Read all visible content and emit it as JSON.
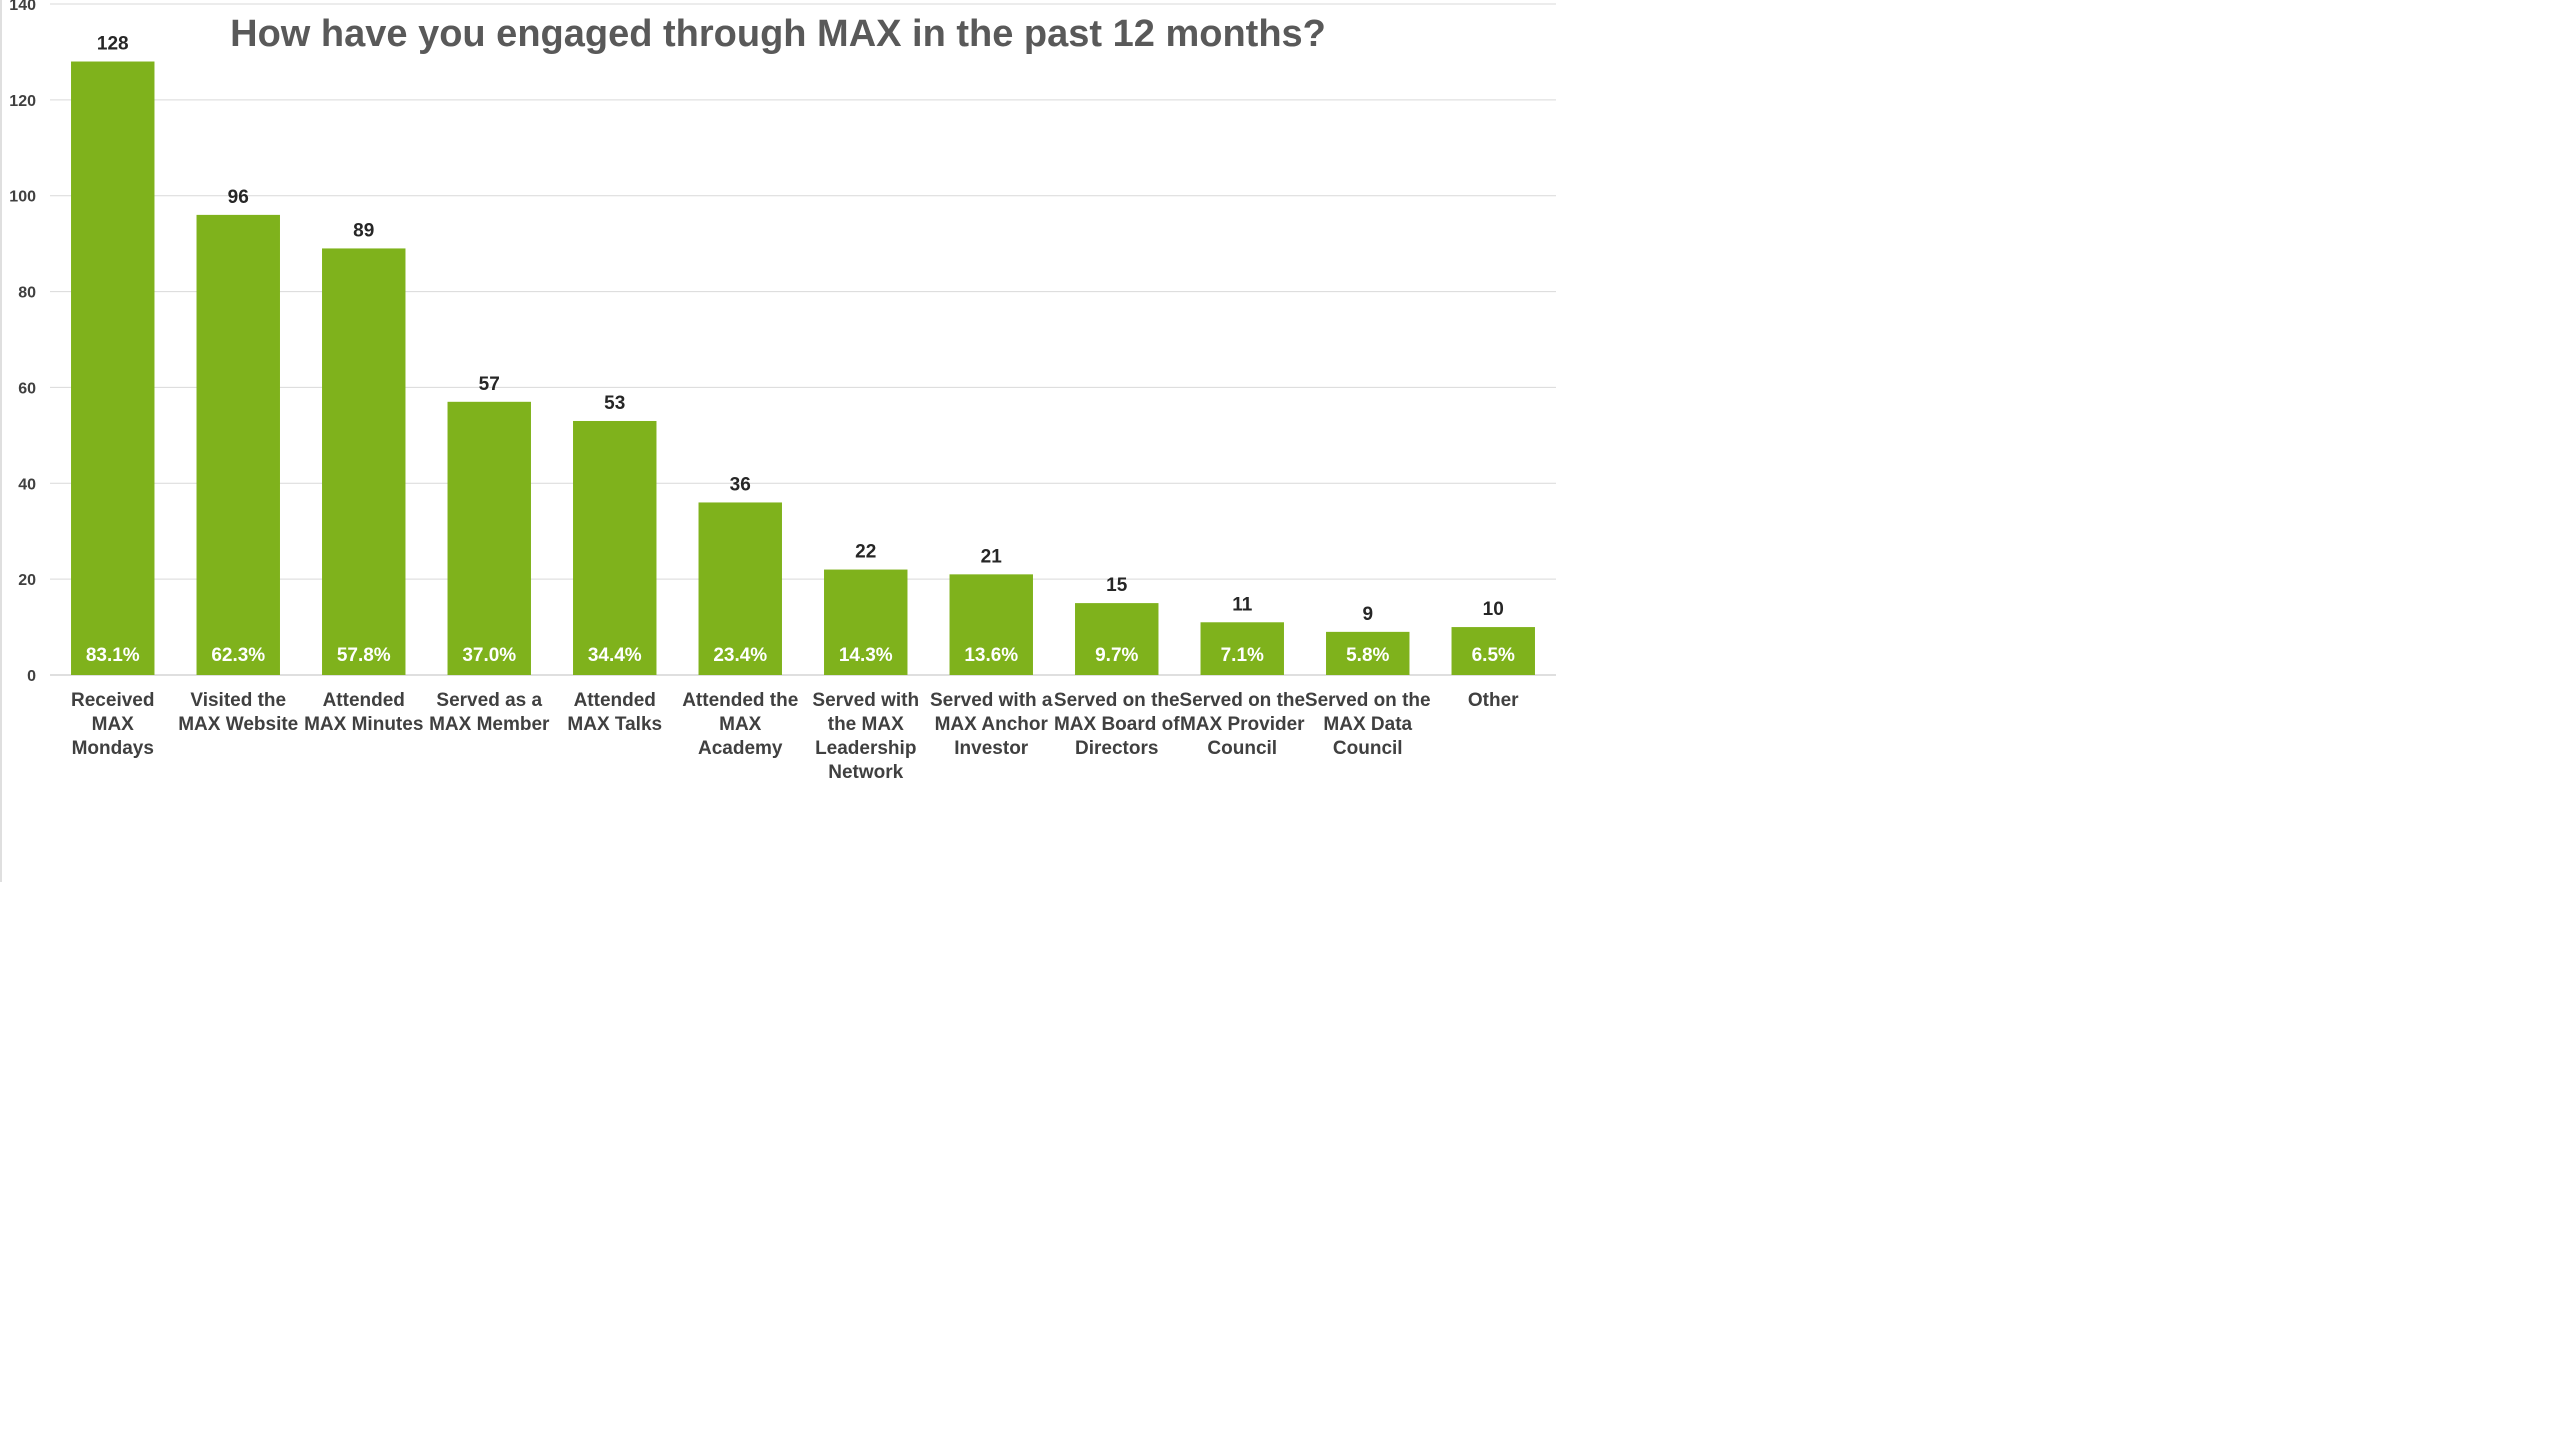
{
  "chart_data": {
    "type": "bar",
    "title": "How have you engaged through MAX in the past 12 months?",
    "xlabel": "",
    "ylabel": "",
    "ylim": [
      0,
      140
    ],
    "yticks": [
      0,
      20,
      40,
      60,
      80,
      100,
      120,
      140
    ],
    "grid": true,
    "legend": "none",
    "bar_color": "#7fb21c",
    "categories": [
      [
        "Received",
        "MAX",
        "Mondays"
      ],
      [
        "Visited the",
        "MAX Website"
      ],
      [
        "Attended",
        "MAX Minutes"
      ],
      [
        "Served as a",
        "MAX Member"
      ],
      [
        "Attended",
        "MAX Talks"
      ],
      [
        "Attended the",
        "MAX",
        "Academy"
      ],
      [
        "Served with",
        "the MAX",
        "Leadership",
        "Network"
      ],
      [
        "Served with a",
        "MAX Anchor",
        "Investor"
      ],
      [
        "Served on the",
        "MAX Board of",
        "Directors"
      ],
      [
        "Served on the",
        "MAX Provider",
        "Council"
      ],
      [
        "Served on the",
        "MAX Data",
        "Council"
      ],
      [
        "Other"
      ]
    ],
    "values": [
      128,
      96,
      89,
      57,
      53,
      36,
      22,
      21,
      15,
      11,
      9,
      10
    ],
    "percent_labels": [
      "83.1%",
      "62.3%",
      "57.8%",
      "37.0%",
      "34.4%",
      "23.4%",
      "14.3%",
      "13.6%",
      "9.7%",
      "7.1%",
      "5.8%",
      "6.5%"
    ]
  }
}
